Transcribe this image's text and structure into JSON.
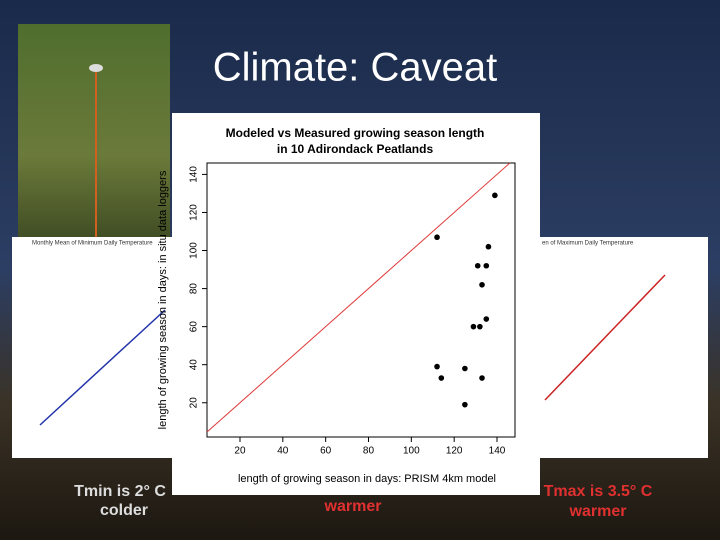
{
  "title": "Climate: Caveat",
  "left_panel": {
    "title": "Monthly Mean of Minimum Daily Temperature"
  },
  "right_panel": {
    "title": "en of Maximum Daily Temperature"
  },
  "captions": {
    "left": [
      "Tmin is 2° C",
      "colder"
    ],
    "middle": "warmer",
    "right": [
      "Tmax is 3.5° C",
      "warmer"
    ]
  },
  "chart_data": {
    "type": "scatter",
    "title": [
      "Modeled vs Measured growing season length",
      "in 10 Adirondack Peatlands"
    ],
    "x_label": "length of growing season in days: PRISM 4km model",
    "y_label": "length of growing season in days: in situ data loggers",
    "x": [
      112,
      139,
      136,
      131,
      135,
      133,
      129,
      132,
      135,
      112,
      125,
      133,
      114,
      125
    ],
    "values": [
      107,
      129,
      102,
      92,
      92,
      82,
      60,
      60,
      64,
      39,
      38,
      33,
      33,
      19
    ],
    "color": "#000000",
    "ref_line_color": "#e03a3a",
    "xlim": [
      4.6,
      148.4
    ],
    "ylim": [
      2,
      146
    ],
    "xticks": [
      20,
      40,
      60,
      80,
      100,
      120,
      140
    ],
    "yticks": [
      20,
      40,
      60,
      80,
      100,
      120,
      140
    ]
  }
}
